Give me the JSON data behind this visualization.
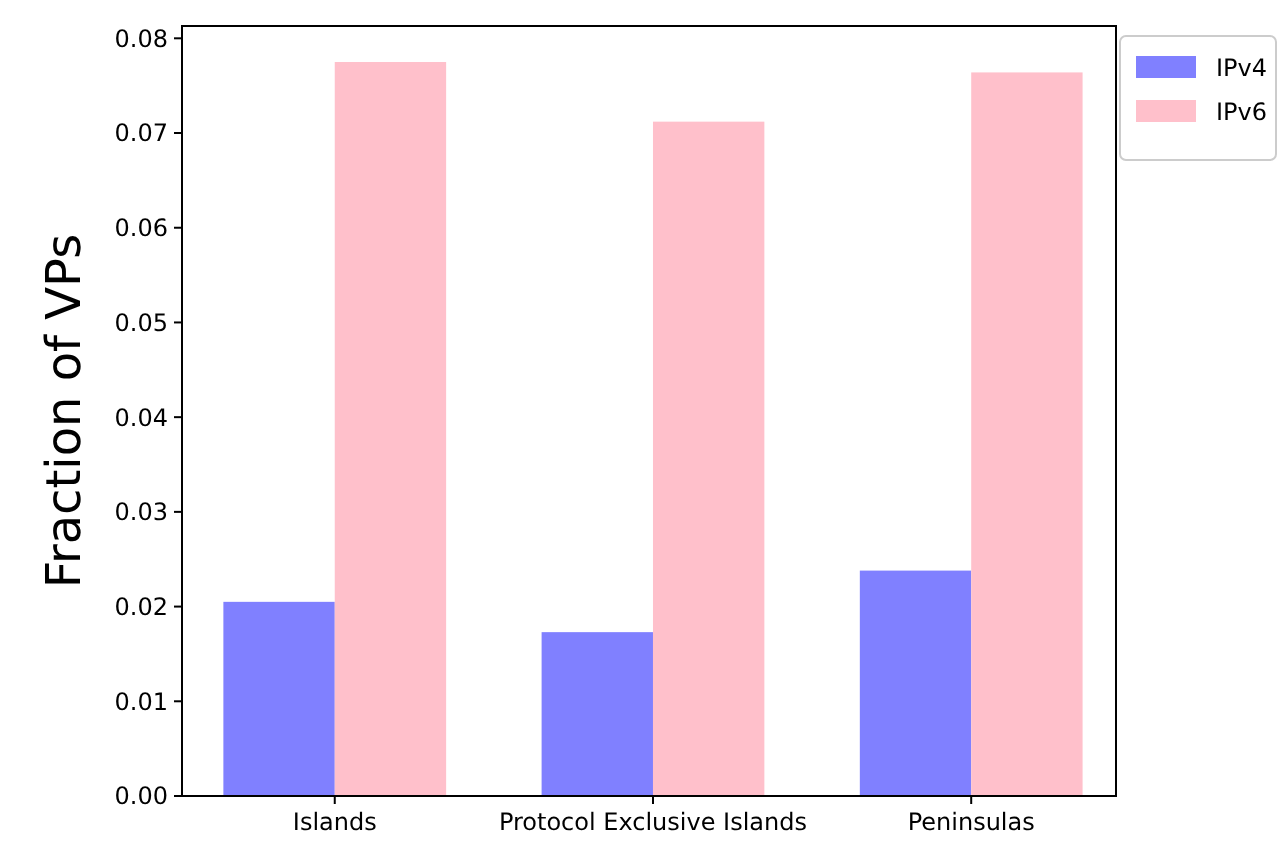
{
  "chart_data": {
    "type": "bar",
    "ylabel": "Fraction of VPs",
    "categories": [
      "Islands",
      "Protocol Exclusive Islands",
      "Peninsulas"
    ],
    "series": [
      {
        "name": "IPv4",
        "color": "#8080ff",
        "values": [
          0.0205,
          0.0173,
          0.0238
        ]
      },
      {
        "name": "IPv6",
        "color": "#ffc0cb",
        "values": [
          0.0775,
          0.0712,
          0.0764
        ]
      }
    ],
    "ylim": [
      0,
      0.0813
    ],
    "yticks": [
      {
        "value": 0,
        "label": "0.00"
      },
      {
        "value": 0.01,
        "label": "0.01"
      },
      {
        "value": 0.02,
        "label": "0.02"
      },
      {
        "value": 0.03,
        "label": "0.03"
      },
      {
        "value": 0.04,
        "label": "0.04"
      },
      {
        "value": 0.05,
        "label": "0.05"
      },
      {
        "value": 0.06,
        "label": "0.06"
      },
      {
        "value": 0.07,
        "label": "0.07"
      },
      {
        "value": 0.08,
        "label": "0.08"
      }
    ],
    "legend": "right",
    "grid": false
  }
}
